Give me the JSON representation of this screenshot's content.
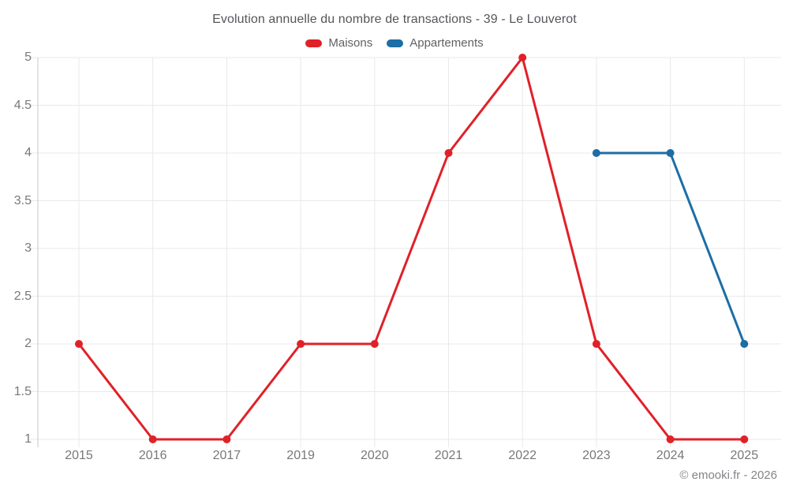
{
  "header": {
    "title": "Evolution annuelle du nombre de transactions - 39 - Le Louverot"
  },
  "footer": {
    "credit": "© emooki.fr - 2026"
  },
  "chart_data": {
    "type": "line",
    "title": "Evolution annuelle du nombre de transactions - 39 - Le Louverot",
    "categories": [
      "2015",
      "2016",
      "2017",
      "2019",
      "2020",
      "2021",
      "2022",
      "2023",
      "2024",
      "2025"
    ],
    "series": [
      {
        "name": "Maisons",
        "color": "#e02128",
        "values": [
          2,
          1,
          1,
          2,
          2,
          4,
          5,
          2,
          1,
          1
        ]
      },
      {
        "name": "Appartements",
        "color": "#1c6ea4",
        "values": [
          null,
          null,
          null,
          null,
          null,
          null,
          null,
          4,
          4,
          2
        ]
      }
    ],
    "xlabel": "",
    "ylabel": "",
    "ylim": [
      1,
      5
    ],
    "ytick_step": 0.5,
    "ytick_labels": [
      "1",
      "1.5",
      "2",
      "2.5",
      "3",
      "3.5",
      "4",
      "4.5",
      "5"
    ],
    "grid": true,
    "legend_position": "top",
    "marker_radius": 5,
    "line_width": 3
  },
  "colors": {
    "grid": "#e9e9e9",
    "axis_line": "#c9c9c9",
    "tick_text": "#77787a",
    "title_text": "#54565a",
    "legend_text": "#5f6163",
    "footer_text": "#828487"
  }
}
